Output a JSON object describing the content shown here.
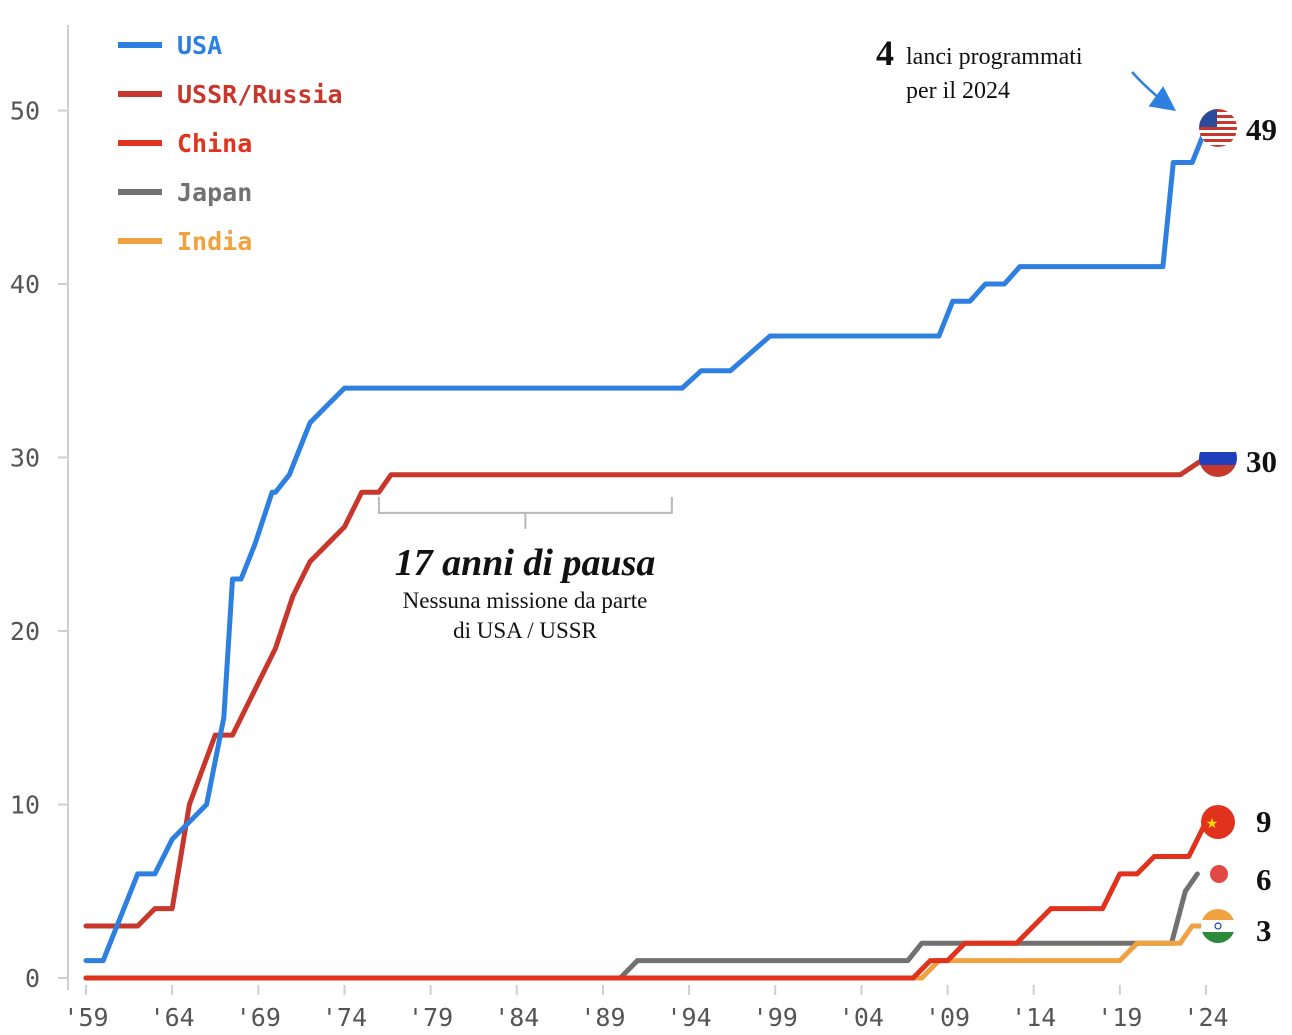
{
  "chart_data": {
    "type": "line",
    "title": "",
    "xlabel": "",
    "ylabel": "",
    "xlim": [
      1959,
      2024
    ],
    "ylim": [
      0,
      55
    ],
    "step": true,
    "grid": false,
    "legend_position": "top-left",
    "x_ticks": [
      {
        "value": 1959,
        "label": "'59"
      },
      {
        "value": 1964,
        "label": "'64"
      },
      {
        "value": 1969,
        "label": "'69"
      },
      {
        "value": 1974,
        "label": "'74"
      },
      {
        "value": 1979,
        "label": "'79"
      },
      {
        "value": 1984,
        "label": "'84"
      },
      {
        "value": 1989,
        "label": "'89"
      },
      {
        "value": 1994,
        "label": "'94"
      },
      {
        "value": 1999,
        "label": "'99"
      },
      {
        "value": 2004,
        "label": "'04"
      },
      {
        "value": 2009,
        "label": "'09"
      },
      {
        "value": 2014,
        "label": "'14"
      },
      {
        "value": 2019,
        "label": "'19"
      },
      {
        "value": 2024,
        "label": "'24"
      }
    ],
    "y_ticks": [
      {
        "value": 0,
        "label": "0"
      },
      {
        "value": 10,
        "label": "10"
      },
      {
        "value": 20,
        "label": "20"
      },
      {
        "value": 30,
        "label": "30"
      },
      {
        "value": 40,
        "label": "40"
      },
      {
        "value": 50,
        "label": "50"
      }
    ],
    "series": [
      {
        "name": "USA",
        "color": "#2d7fe0",
        "end_value": "49",
        "end_marker": "us-flag-icon",
        "points": [
          [
            1959,
            1
          ],
          [
            1960,
            1
          ],
          [
            1962,
            6
          ],
          [
            1963,
            6
          ],
          [
            1964,
            8
          ],
          [
            1966,
            10
          ],
          [
            1967,
            15
          ],
          [
            1967.5,
            23
          ],
          [
            1968,
            23
          ],
          [
            1968.8,
            25
          ],
          [
            1969.8,
            28
          ],
          [
            1970,
            28
          ],
          [
            1970.8,
            29
          ],
          [
            1972,
            32
          ],
          [
            1973,
            33
          ],
          [
            1974,
            34
          ],
          [
            1993.6,
            34
          ],
          [
            1994.7,
            35
          ],
          [
            1996.4,
            35
          ],
          [
            1998.7,
            37
          ],
          [
            2008.5,
            37
          ],
          [
            2009.3,
            39
          ],
          [
            2010.3,
            39
          ],
          [
            2011.2,
            40
          ],
          [
            2012.3,
            40
          ],
          [
            2013.2,
            41
          ],
          [
            2021.5,
            41
          ],
          [
            2022.1,
            47
          ],
          [
            2023.2,
            47
          ],
          [
            2024,
            49
          ]
        ]
      },
      {
        "name": "USSR/Russia",
        "color": "#c8372c",
        "end_value": "30",
        "end_marker": "russia-flag-icon",
        "points": [
          [
            1959,
            3
          ],
          [
            1962,
            3
          ],
          [
            1963,
            4
          ],
          [
            1964,
            4
          ],
          [
            1965,
            10
          ],
          [
            1966.5,
            14
          ],
          [
            1967.5,
            14
          ],
          [
            1969,
            17
          ],
          [
            1970,
            19
          ],
          [
            1971,
            22
          ],
          [
            1972,
            24
          ],
          [
            1973,
            25
          ],
          [
            1974,
            26
          ],
          [
            1975,
            28
          ],
          [
            1976,
            28
          ],
          [
            1976.7,
            29
          ],
          [
            2022.5,
            29
          ],
          [
            2024,
            30
          ]
        ]
      },
      {
        "name": "China",
        "color": "#e0321d",
        "end_value": "9",
        "end_marker": "china-flag-icon",
        "points": [
          [
            1959,
            0
          ],
          [
            2007,
            0
          ],
          [
            2008,
            1
          ],
          [
            2009,
            1
          ],
          [
            2010,
            2
          ],
          [
            2013,
            2
          ],
          [
            2015,
            4
          ],
          [
            2018,
            4
          ],
          [
            2019,
            6
          ],
          [
            2020,
            6
          ],
          [
            2021,
            7
          ],
          [
            2023,
            7
          ],
          [
            2024,
            9
          ]
        ]
      },
      {
        "name": "Japan",
        "color": "#717171",
        "end_value": "6",
        "end_marker": "japan-flag-icon",
        "points": [
          [
            1959,
            0
          ],
          [
            1990,
            0
          ],
          [
            1991,
            1
          ],
          [
            2006.7,
            1
          ],
          [
            2007.5,
            2
          ],
          [
            2022,
            2
          ],
          [
            2022.8,
            5
          ],
          [
            2023.5,
            6
          ]
        ]
      },
      {
        "name": "India",
        "color": "#f0a241",
        "end_value": "3",
        "end_marker": "india-flag-icon",
        "points": [
          [
            1959,
            0
          ],
          [
            2007.5,
            0
          ],
          [
            2008.5,
            1
          ],
          [
            2019,
            1
          ],
          [
            2020,
            2
          ],
          [
            2022.5,
            2
          ],
          [
            2023.2,
            3
          ],
          [
            2024,
            3
          ]
        ]
      }
    ],
    "annotations": {
      "pause": {
        "x_start": 1976,
        "x_end": 1993,
        "title": "17 anni di pausa",
        "line1": "Nessuna missione da parte",
        "line2": "di USA / USSR"
      },
      "planned": {
        "number": "4",
        "line1": "lanci programmati",
        "line2": "per il 2024"
      }
    }
  }
}
